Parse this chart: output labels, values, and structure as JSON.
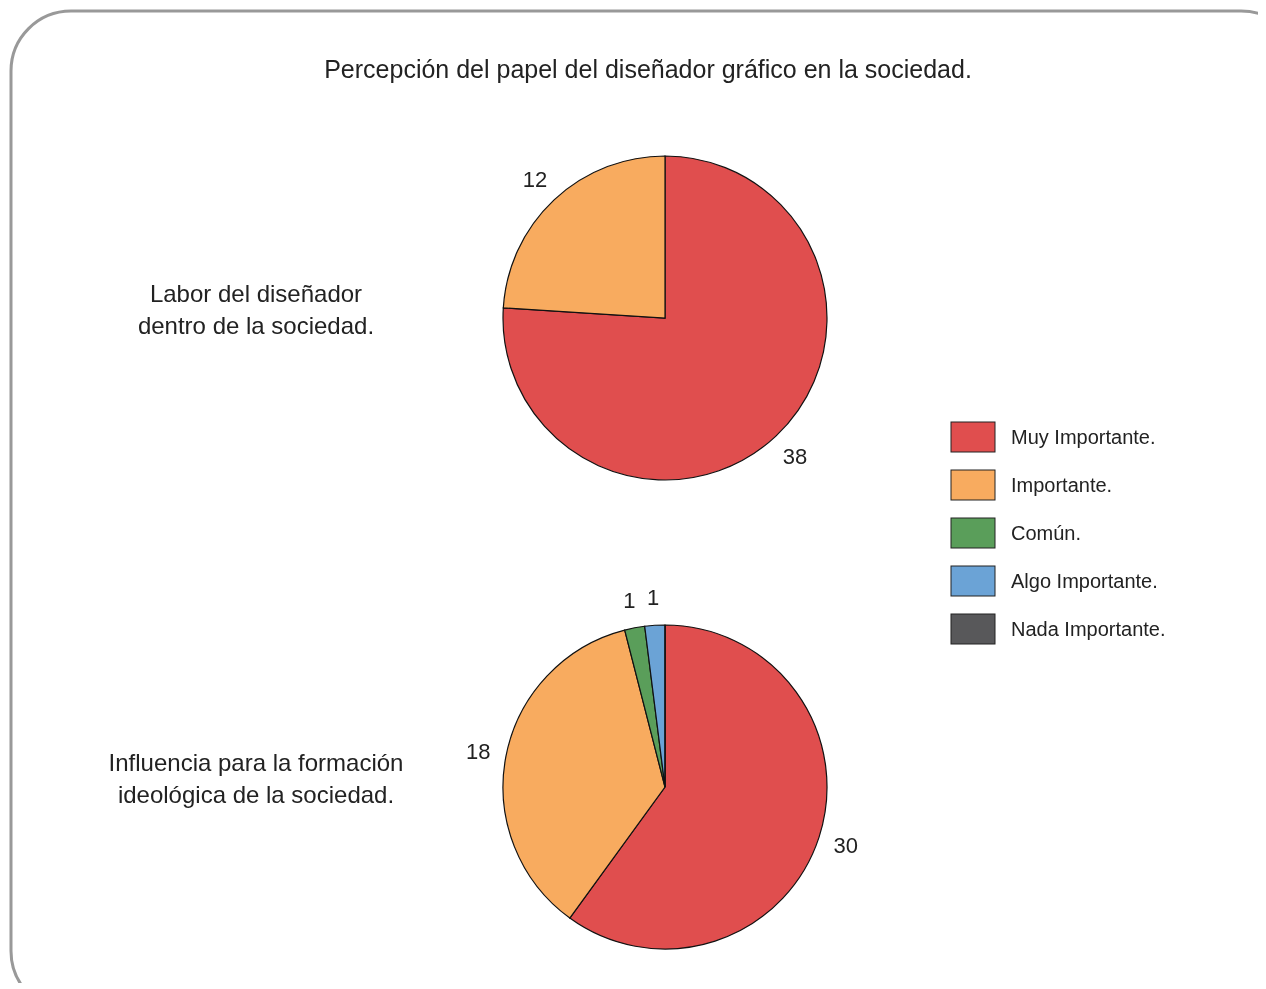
{
  "chart_data": [
    {
      "type": "pie",
      "title": "Labor del diseñador dentro de la sociedad.",
      "annotations": [
        "Percepción del papel del diseñador gráfico en la sociedad."
      ],
      "categories": [
        null,
        null
      ],
      "values": [
        38,
        12
      ],
      "colors": [
        "#e04e4e",
        "#f8ab5f"
      ],
      "data_labels": true
    },
    {
      "type": "pie",
      "title": "Influencia para la formación ideológica de la sociedad.",
      "categories": [
        "Muy Importante.",
        "Importante.",
        "Común.",
        "Algo Importante.",
        "Nada Importante."
      ],
      "values": [
        30,
        18,
        1,
        1,
        0
      ],
      "colors": [
        "#e04e4e",
        "#f8ab5f",
        "#5a9e5a",
        "#6ba3d6",
        "#58585a"
      ],
      "data_labels": true,
      "legend": "right"
    }
  ]
}
